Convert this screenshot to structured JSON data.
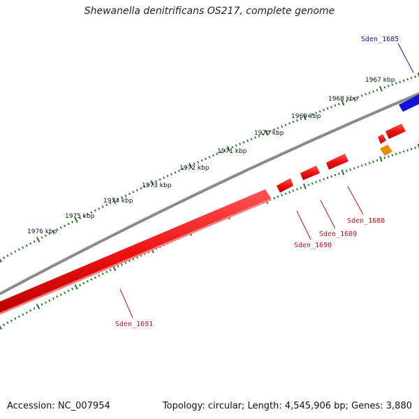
{
  "title": "Shewanella denitrificans OS217, complete genome",
  "footer": {
    "accession": "Accession: NC_007954",
    "summary": "Topology: circular; Length: 4,545,906 bp; Genes: 3,880"
  },
  "colors": {
    "backbone": "#777777",
    "forward_gene": "#1010dd",
    "reverse_gene": "#ee1111",
    "other_feature": "#f08a00",
    "tick": "#1a7a1a",
    "forward_label": "#1111bb",
    "reverse_label": "#cc1111"
  },
  "kbp_labels": [
    "1967 kbp",
    "1968 kbp",
    "1969 kbp",
    "1970 kbp",
    "1971 kbp",
    "1972 kbp",
    "1973 kbp",
    "1974 kbp",
    "1975 kbp",
    "1976 kbp"
  ],
  "genes": [
    {
      "label": "Sden_1685",
      "strand": "forward"
    },
    {
      "label": "Sden_1688",
      "strand": "reverse"
    },
    {
      "label": "Sden_1689",
      "strand": "reverse"
    },
    {
      "label": "Sden_1690",
      "strand": "reverse"
    },
    {
      "label": "Sden_1691",
      "strand": "reverse"
    }
  ]
}
